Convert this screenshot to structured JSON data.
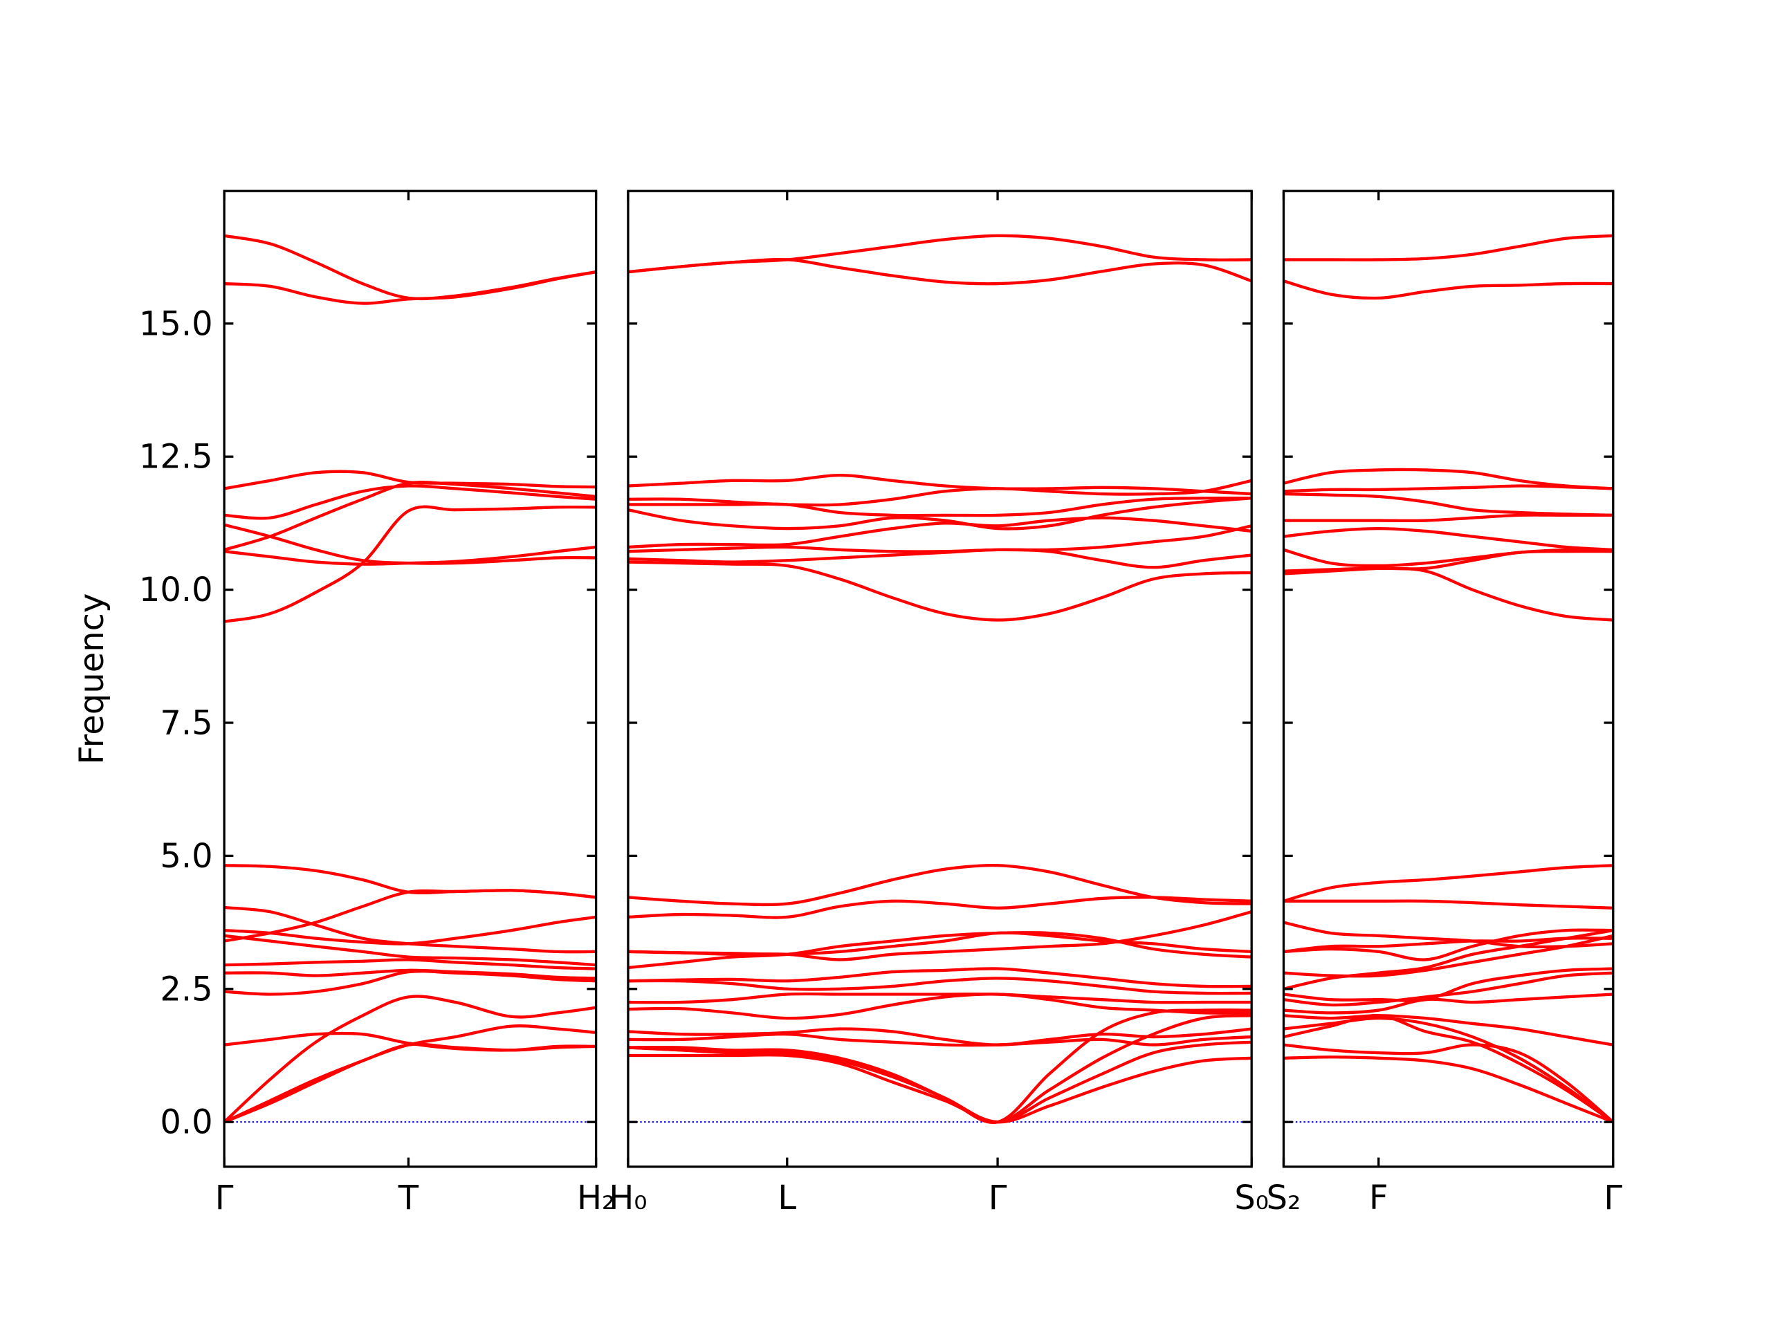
{
  "chart_data": [
    {
      "type": "line",
      "ylabel": "Frequency",
      "color": "#ff0000",
      "hlines": [
        0
      ],
      "hline_color": "#0000ff",
      "xlim": [
        0,
        0.325
      ],
      "xticks": [
        {
          "value": 0,
          "label": "Γ"
        },
        {
          "value": 0.161,
          "label": "T"
        },
        {
          "value": 0.325,
          "label": "H₂"
        }
      ],
      "ylim": [
        -0.84,
        17.49
      ],
      "yticks": [
        {
          "value": 0,
          "label": "0.0"
        },
        {
          "value": 2.5,
          "label": "2.5"
        },
        {
          "value": 5,
          "label": "5.0"
        },
        {
          "value": 7.5,
          "label": "7.5"
        },
        {
          "value": 10,
          "label": "10.0"
        },
        {
          "value": 12.5,
          "label": "12.5"
        },
        {
          "value": 15,
          "label": "15.0"
        }
      ],
      "x": [
        0,
        0.04,
        0.08,
        0.121,
        0.161,
        0.202,
        0.251,
        0.291,
        0.325
      ],
      "series": [
        {
          "values": [
            16.65,
            16.5,
            16.15,
            15.75,
            15.48,
            15.52,
            15.68,
            15.85,
            15.97
          ]
        },
        {
          "values": [
            15.75,
            15.7,
            15.5,
            15.38,
            15.46,
            15.5,
            15.66,
            15.84,
            15.97
          ]
        },
        {
          "values": [
            11.9,
            12.05,
            12.2,
            12.2,
            12.02,
            12.0,
            11.98,
            11.94,
            11.93
          ]
        },
        {
          "values": [
            11.4,
            11.35,
            11.6,
            11.85,
            11.95,
            11.9,
            11.82,
            11.75,
            11.7
          ]
        },
        {
          "values": [
            11.22,
            11.0,
            10.75,
            10.55,
            10.5,
            10.5,
            10.55,
            10.6,
            10.6
          ]
        },
        {
          "values": [
            10.75,
            11.0,
            11.35,
            11.7,
            12.0,
            11.98,
            11.9,
            11.82,
            11.75
          ]
        },
        {
          "values": [
            10.72,
            10.62,
            10.52,
            10.48,
            10.5,
            10.53,
            10.62,
            10.72,
            10.8
          ]
        },
        {
          "values": [
            9.4,
            9.55,
            9.95,
            10.5,
            11.48,
            11.5,
            11.52,
            11.55,
            11.55
          ]
        },
        {
          "values": [
            4.82,
            4.8,
            4.72,
            4.55,
            4.32,
            4.33,
            4.35,
            4.3,
            4.22
          ]
        },
        {
          "values": [
            4.03,
            3.95,
            3.7,
            3.45,
            3.35,
            3.3,
            3.25,
            3.2,
            3.2
          ]
        },
        {
          "values": [
            3.6,
            3.55,
            3.45,
            3.38,
            3.35,
            3.45,
            3.6,
            3.75,
            3.85
          ]
        },
        {
          "values": [
            3.4,
            3.55,
            3.75,
            4.05,
            4.32,
            4.33,
            4.35,
            4.3,
            4.22
          ]
        },
        {
          "values": [
            3.5,
            3.4,
            3.3,
            3.2,
            3.1,
            3.08,
            3.05,
            3.0,
            2.95
          ]
        },
        {
          "values": [
            2.95,
            2.97,
            3.0,
            3.02,
            3.05,
            3.0,
            2.95,
            2.9,
            2.88
          ]
        },
        {
          "values": [
            2.8,
            2.8,
            2.75,
            2.8,
            2.85,
            2.82,
            2.78,
            2.72,
            2.7
          ]
        },
        {
          "values": [
            2.45,
            2.4,
            2.45,
            2.6,
            2.82,
            2.8,
            2.75,
            2.68,
            2.65
          ]
        },
        {
          "values": [
            1.45,
            1.55,
            1.65,
            1.65,
            1.48,
            1.38,
            1.35,
            1.42,
            1.42
          ]
        },
        {
          "values": [
            0,
            0.8,
            1.5,
            2.0,
            2.35,
            2.25,
            1.98,
            2.05,
            2.15
          ]
        },
        {
          "values": [
            0,
            0.35,
            0.75,
            1.15,
            1.45,
            1.6,
            1.8,
            1.75,
            1.68
          ]
        },
        {
          "values": [
            0,
            0.4,
            0.8,
            1.15,
            1.45,
            1.4,
            1.35,
            1.4,
            1.42
          ]
        }
      ]
    },
    {
      "type": "line",
      "color": "#ff0000",
      "hlines": [
        0
      ],
      "hline_color": "#0000ff",
      "xlim": [
        0,
        0.545
      ],
      "xticks": [
        {
          "value": 0,
          "label": "H₀"
        },
        {
          "value": 0.139,
          "label": "L"
        },
        {
          "value": 0.323,
          "label": "Γ"
        },
        {
          "value": 0.545,
          "label": "S₀"
        }
      ],
      "ylim": [
        -0.84,
        17.49
      ],
      "yticks": [
        0,
        2.5,
        5,
        7.5,
        10,
        12.5,
        15
      ],
      "x": [
        0,
        0.046,
        0.091,
        0.139,
        0.185,
        0.231,
        0.277,
        0.323,
        0.368,
        0.414,
        0.459,
        0.503,
        0.545
      ],
      "series": [
        {
          "values": [
            15.97,
            16.07,
            16.15,
            16.2,
            16.32,
            16.45,
            16.58,
            16.65,
            16.6,
            16.45,
            16.25,
            16.2,
            16.2
          ]
        },
        {
          "values": [
            15.97,
            16.07,
            16.15,
            16.2,
            16.05,
            15.9,
            15.78,
            15.75,
            15.82,
            15.98,
            16.12,
            16.1,
            15.8
          ]
        },
        {
          "values": [
            11.95,
            12.0,
            12.05,
            12.05,
            12.15,
            12.05,
            11.95,
            11.9,
            11.9,
            11.92,
            11.9,
            11.85,
            11.8
          ]
        },
        {
          "values": [
            11.7,
            11.7,
            11.65,
            11.6,
            11.6,
            11.7,
            11.85,
            11.9,
            11.85,
            11.8,
            11.8,
            11.85,
            12.05
          ]
        },
        {
          "values": [
            11.6,
            11.6,
            11.6,
            11.6,
            11.45,
            11.4,
            11.4,
            11.4,
            11.45,
            11.6,
            11.7,
            11.72,
            11.72
          ]
        },
        {
          "values": [
            11.5,
            11.3,
            11.2,
            11.15,
            11.2,
            11.35,
            11.3,
            11.15,
            11.2,
            11.4,
            11.55,
            11.65,
            11.72
          ]
        },
        {
          "values": [
            10.8,
            10.85,
            10.85,
            10.85,
            11.0,
            11.15,
            11.25,
            11.2,
            11.3,
            11.35,
            11.3,
            11.2,
            11.1
          ]
        },
        {
          "values": [
            10.72,
            10.75,
            10.78,
            10.8,
            10.75,
            10.72,
            10.72,
            10.75,
            10.75,
            10.8,
            10.9,
            11.0,
            11.2
          ]
        },
        {
          "values": [
            10.58,
            10.55,
            10.52,
            10.55,
            10.6,
            10.65,
            10.7,
            10.75,
            10.72,
            10.55,
            10.42,
            10.55,
            10.65
          ]
        },
        {
          "values": [
            10.52,
            10.5,
            10.48,
            10.45,
            10.2,
            9.85,
            9.55,
            9.43,
            9.55,
            9.85,
            10.2,
            10.3,
            10.32
          ]
        },
        {
          "values": [
            4.22,
            4.15,
            4.1,
            4.1,
            4.3,
            4.55,
            4.75,
            4.82,
            4.7,
            4.45,
            4.22,
            4.12,
            4.1
          ]
        },
        {
          "values": [
            3.85,
            3.9,
            3.88,
            3.85,
            4.05,
            4.15,
            4.1,
            4.02,
            4.1,
            4.2,
            4.22,
            4.18,
            4.15
          ]
        },
        {
          "values": [
            3.2,
            3.18,
            3.17,
            3.15,
            3.2,
            3.3,
            3.4,
            3.55,
            3.5,
            3.4,
            3.35,
            3.25,
            3.2
          ]
        },
        {
          "values": [
            2.9,
            3.0,
            3.1,
            3.15,
            3.3,
            3.4,
            3.5,
            3.55,
            3.55,
            3.45,
            3.25,
            3.15,
            3.1
          ]
        },
        {
          "values": [
            3.2,
            3.18,
            3.15,
            3.15,
            3.05,
            3.15,
            3.2,
            3.25,
            3.3,
            3.35,
            3.5,
            3.7,
            3.95
          ]
        },
        {
          "values": [
            2.65,
            2.67,
            2.68,
            2.65,
            2.72,
            2.82,
            2.85,
            2.88,
            2.8,
            2.7,
            2.6,
            2.55,
            2.55
          ]
        },
        {
          "values": [
            2.65,
            2.65,
            2.6,
            2.5,
            2.5,
            2.55,
            2.65,
            2.7,
            2.65,
            2.55,
            2.45,
            2.42,
            2.42
          ]
        },
        {
          "values": [
            2.25,
            2.25,
            2.3,
            2.4,
            2.4,
            2.4,
            2.4,
            2.4,
            2.35,
            2.3,
            2.25,
            2.25,
            2.25
          ]
        },
        {
          "values": [
            2.12,
            2.13,
            2.05,
            1.95,
            2.02,
            2.2,
            2.35,
            2.4,
            2.3,
            2.15,
            2.1,
            2.05,
            2.05
          ]
        },
        {
          "values": [
            1.7,
            1.65,
            1.65,
            1.68,
            1.75,
            1.7,
            1.55,
            1.45,
            1.55,
            1.65,
            1.6,
            1.65,
            1.75
          ]
        },
        {
          "values": [
            1.55,
            1.55,
            1.6,
            1.65,
            1.55,
            1.5,
            1.45,
            1.45,
            1.5,
            1.55,
            1.45,
            1.55,
            1.6
          ]
        },
        {
          "values": [
            1.4,
            1.35,
            1.3,
            1.3,
            1.15,
            0.85,
            0.45,
            0,
            0.6,
            1.2,
            1.65,
            1.95,
            2.0
          ]
        },
        {
          "values": [
            1.4,
            1.35,
            1.3,
            1.3,
            1.15,
            0.85,
            0.45,
            0,
            0.45,
            0.9,
            1.3,
            1.45,
            1.5
          ]
        },
        {
          "values": [
            1.25,
            1.25,
            1.25,
            1.25,
            1.1,
            0.75,
            0.4,
            0,
            0.3,
            0.65,
            0.95,
            1.15,
            1.2
          ]
        },
        {
          "values": [
            1.4,
            1.4,
            1.35,
            1.35,
            1.2,
            0.9,
            0.45,
            0,
            0.9,
            1.7,
            2.05,
            2.1,
            2.1
          ]
        }
      ]
    },
    {
      "type": "line",
      "color": "#ff0000",
      "hlines": [
        0
      ],
      "hline_color": "#0000ff",
      "xlim": [
        0,
        0.288
      ],
      "xticks": [
        {
          "value": 0,
          "label": "S₂"
        },
        {
          "value": 0.083,
          "label": "F"
        },
        {
          "value": 0.288,
          "label": "Γ"
        }
      ],
      "ylim": [
        -0.84,
        17.49
      ],
      "yticks": [
        0,
        2.5,
        5,
        7.5,
        10,
        12.5,
        15
      ],
      "x": [
        0,
        0.041,
        0.083,
        0.124,
        0.165,
        0.206,
        0.247,
        0.288
      ],
      "series": [
        {
          "values": [
            16.2,
            16.2,
            16.2,
            16.22,
            16.3,
            16.45,
            16.6,
            16.65
          ]
        },
        {
          "values": [
            15.8,
            15.55,
            15.48,
            15.6,
            15.7,
            15.72,
            15.75,
            15.75
          ]
        },
        {
          "values": [
            12.0,
            12.2,
            12.25,
            12.25,
            12.2,
            12.05,
            11.95,
            11.9
          ]
        },
        {
          "values": [
            11.85,
            11.88,
            11.88,
            11.9,
            11.92,
            11.95,
            11.93,
            11.9
          ]
        },
        {
          "values": [
            11.8,
            11.78,
            11.75,
            11.65,
            11.5,
            11.45,
            11.42,
            11.4
          ]
        },
        {
          "values": [
            11.3,
            11.3,
            11.3,
            11.3,
            11.35,
            11.4,
            11.4,
            11.4
          ]
        },
        {
          "values": [
            11.0,
            11.1,
            11.15,
            11.1,
            11.0,
            10.9,
            10.8,
            10.75
          ]
        },
        {
          "values": [
            10.75,
            10.5,
            10.45,
            10.5,
            10.6,
            10.7,
            10.75,
            10.75
          ]
        },
        {
          "values": [
            10.3,
            10.35,
            10.4,
            10.4,
            10.55,
            10.7,
            10.72,
            10.72
          ]
        },
        {
          "values": [
            10.35,
            10.38,
            10.4,
            10.35,
            10.0,
            9.7,
            9.5,
            9.43
          ]
        },
        {
          "values": [
            4.15,
            4.4,
            4.5,
            4.55,
            4.62,
            4.7,
            4.78,
            4.82
          ]
        },
        {
          "values": [
            4.15,
            4.15,
            4.15,
            4.15,
            4.12,
            4.08,
            4.05,
            4.02
          ]
        },
        {
          "values": [
            3.75,
            3.55,
            3.5,
            3.45,
            3.4,
            3.3,
            3.3,
            3.35
          ]
        },
        {
          "values": [
            3.2,
            3.25,
            3.2,
            3.05,
            3.3,
            3.5,
            3.6,
            3.6
          ]
        },
        {
          "values": [
            3.2,
            3.3,
            3.3,
            3.35,
            3.4,
            3.4,
            3.45,
            3.45
          ]
        },
        {
          "values": [
            2.8,
            2.75,
            2.75,
            2.85,
            3.0,
            3.15,
            3.3,
            3.5
          ]
        },
        {
          "values": [
            2.5,
            2.7,
            2.8,
            2.9,
            3.15,
            3.3,
            3.45,
            3.6
          ]
        },
        {
          "values": [
            2.4,
            2.3,
            2.3,
            2.3,
            2.6,
            2.75,
            2.85,
            2.88
          ]
        },
        {
          "values": [
            2.3,
            2.2,
            2.25,
            2.35,
            2.45,
            2.6,
            2.75,
            2.8
          ]
        },
        {
          "values": [
            2.1,
            2.05,
            2.1,
            2.3,
            2.25,
            2.3,
            2.35,
            2.4
          ]
        },
        {
          "values": [
            2.0,
            1.95,
            2.0,
            1.95,
            1.85,
            1.75,
            1.6,
            1.45
          ]
        },
        {
          "values": [
            1.75,
            1.85,
            1.95,
            1.85,
            1.6,
            1.2,
            0.65,
            0
          ]
        },
        {
          "values": [
            1.6,
            1.8,
            2.0,
            1.7,
            1.5,
            1.1,
            0.6,
            0
          ]
        },
        {
          "values": [
            1.45,
            1.35,
            1.3,
            1.3,
            1.45,
            1.3,
            0.75,
            0
          ]
        },
        {
          "values": [
            1.2,
            1.22,
            1.2,
            1.15,
            1.0,
            0.7,
            0.35,
            0
          ]
        }
      ]
    }
  ]
}
